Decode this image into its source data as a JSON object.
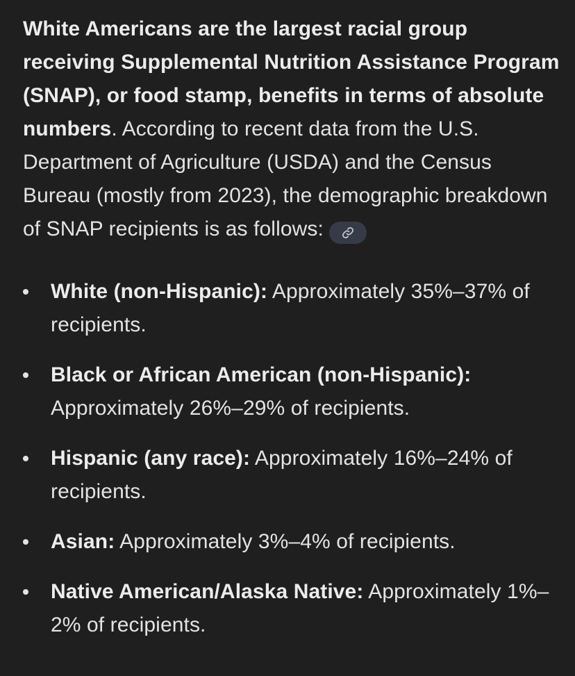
{
  "intro": {
    "bold_text": "White Americans are the largest racial group receiving Supplemental Nutrition Assistance Program (SNAP), or food stamp, benefits in terms of absolute numbers",
    "rest_text": ". According to recent data from the U.S. Department of Agriculture (USDA) and the Census Bureau (mostly from 2023), the demographic breakdown of SNAP recipients is as follows:",
    "source_icon": "link-icon"
  },
  "breakdown": [
    {
      "label": "White (non-Hispanic):",
      "text": " Approximately 35%–37% of recipients."
    },
    {
      "label": "Black or African American (non-Hispanic):",
      "text": " Approximately 26%–29% of recipients."
    },
    {
      "label": "Hispanic (any race):",
      "text": " Approximately 16%–24% of recipients."
    },
    {
      "label": "Asian:",
      "text": " Approximately 3%–4% of recipients."
    },
    {
      "label": "Native American/Alaska Native:",
      "text": " Approximately 1%–2% of recipients."
    }
  ],
  "colors": {
    "background": "#1f1f1f",
    "text": "#e3e3e3",
    "chip": "#353b47"
  }
}
